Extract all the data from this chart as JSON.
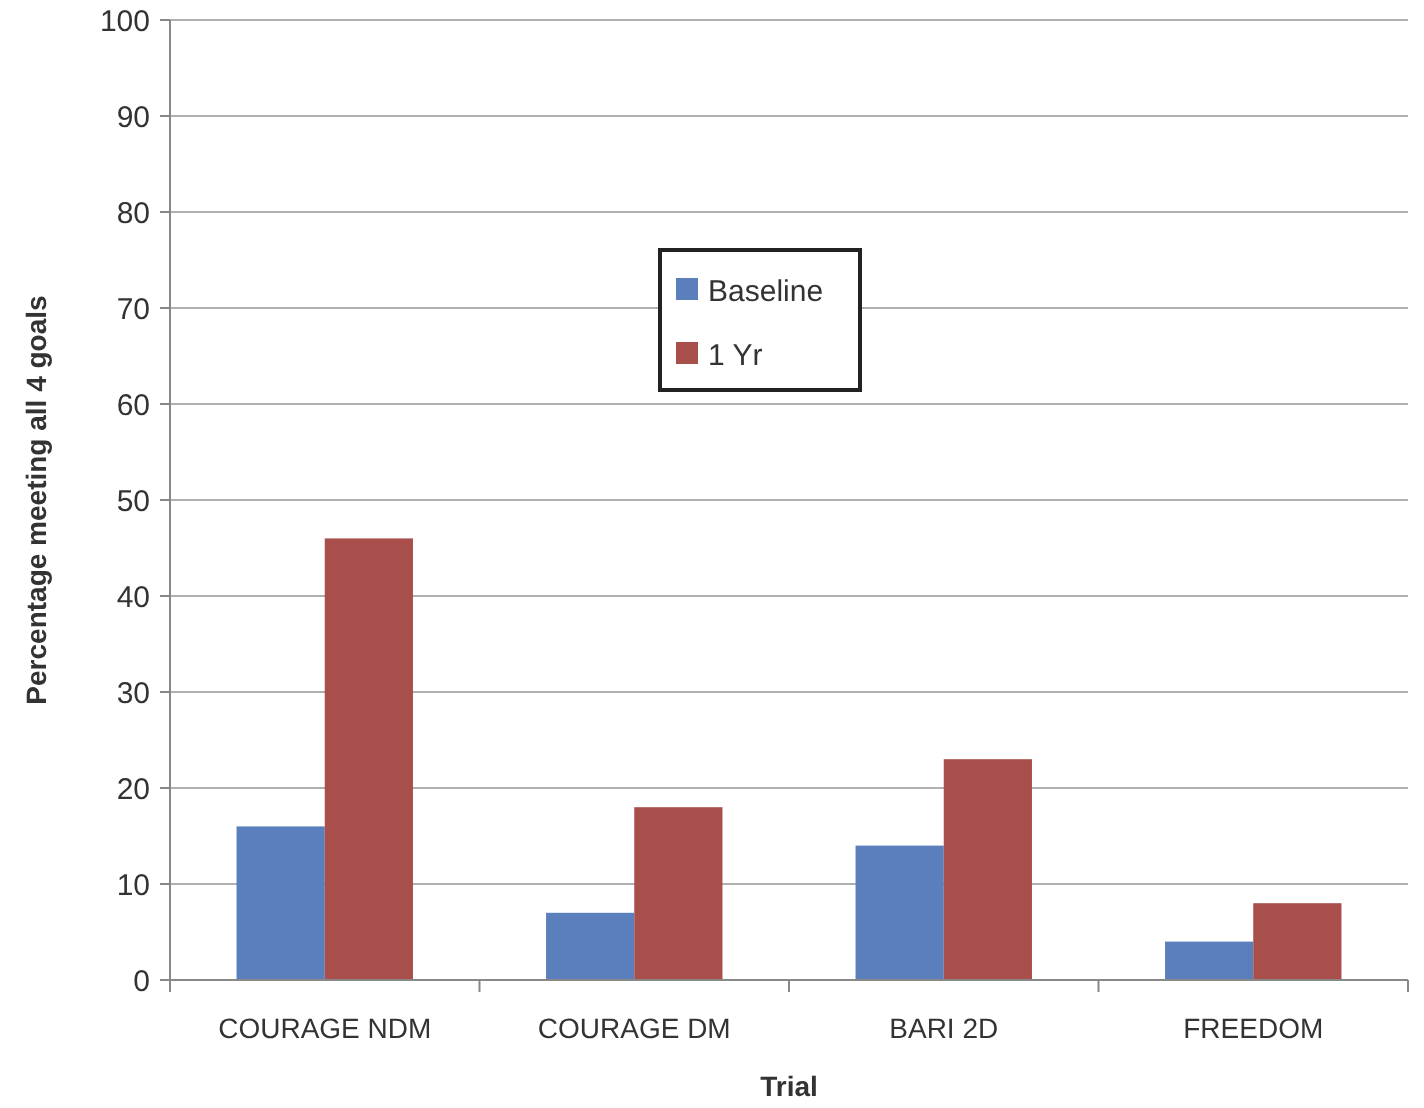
{
  "chart_data": {
    "type": "bar",
    "xlabel": "Trial",
    "ylabel": "Percentage meeting  all 4  goals",
    "categories": [
      "COURAGE NDM",
      "COURAGE DM",
      "BARI 2D",
      "FREEDOM"
    ],
    "series": [
      {
        "name": "Baseline",
        "color": "#5b7fbd",
        "values": [
          16,
          7,
          14,
          4
        ]
      },
      {
        "name": "1 Yr",
        "color": "#a84f4c",
        "values": [
          46,
          18,
          23,
          8
        ]
      }
    ],
    "ylim": [
      0,
      100
    ],
    "yticks": [
      0,
      10,
      20,
      30,
      40,
      50,
      60,
      70,
      80,
      90,
      100
    ],
    "grid": "y",
    "legend": "top"
  }
}
